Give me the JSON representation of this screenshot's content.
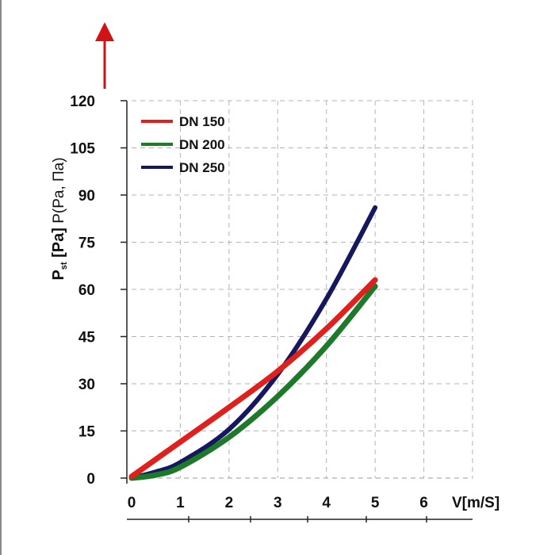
{
  "chart_data": {
    "type": "line",
    "title": "",
    "xlabel": "V[m/S]",
    "ylabel": {
      "main": "P",
      "subscript": "st",
      "unit": " [Pa]",
      "alt": " P(Pa, Па)"
    },
    "xlim": [
      0,
      7
    ],
    "ylim": [
      0,
      120
    ],
    "x_ticks": [
      0,
      1,
      2,
      3,
      4,
      5,
      6
    ],
    "y_ticks": [
      0,
      15,
      30,
      45,
      60,
      75,
      90,
      105,
      120
    ],
    "grid": true,
    "legend_position": "top-left",
    "series": [
      {
        "name": "DN 150",
        "color": "#e0201c",
        "x": [
          0,
          1,
          2,
          3,
          4,
          5
        ],
        "y": [
          0.5,
          11.5,
          22.5,
          34,
          47.5,
          63
        ]
      },
      {
        "name": "DN 200",
        "color": "#1c7a2a",
        "x": [
          0,
          0.5,
          1,
          2,
          3,
          4,
          5
        ],
        "y": [
          0,
          1,
          3.5,
          13,
          26,
          42,
          61
        ]
      },
      {
        "name": "DN 250",
        "color": "#16185e",
        "x": [
          0,
          0.5,
          1,
          2,
          3,
          4,
          5
        ],
        "y": [
          0,
          2,
          5,
          15.5,
          33,
          57,
          86
        ]
      }
    ]
  }
}
